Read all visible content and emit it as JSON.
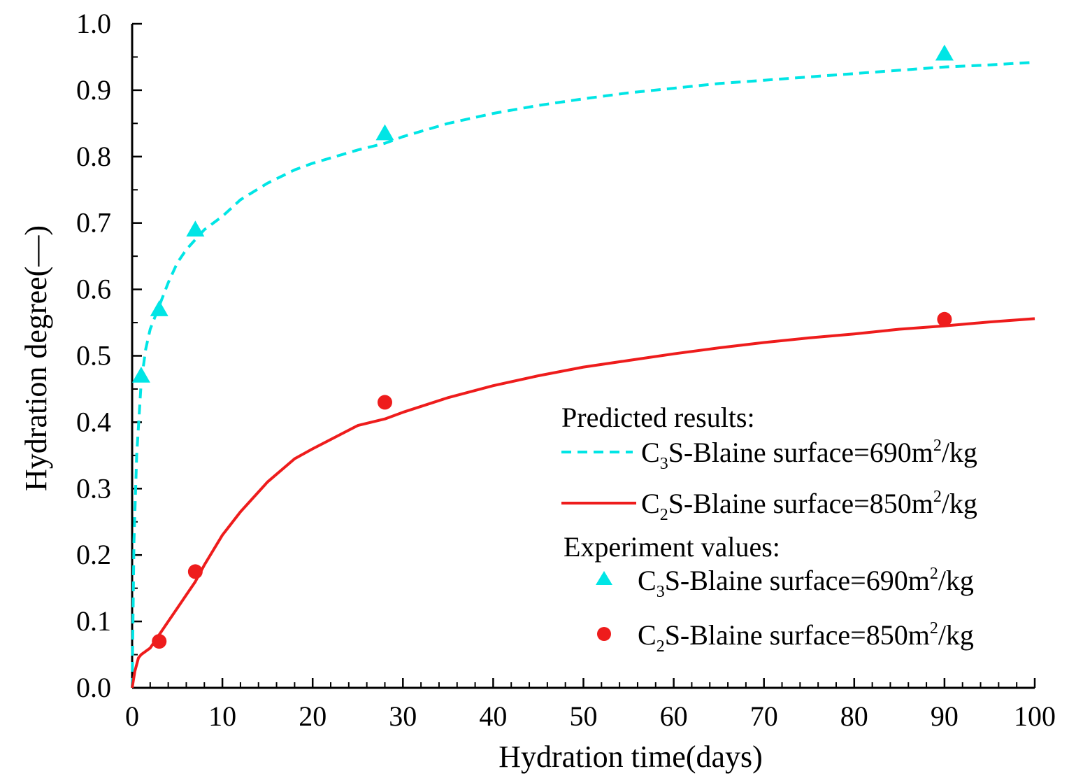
{
  "chart_data": {
    "type": "line",
    "title": "",
    "xlabel": "Hydration time(days)",
    "ylabel": "Hydration degree(—)",
    "xlim": [
      0,
      100
    ],
    "ylim": [
      0.0,
      1.0
    ],
    "x_ticks": [
      "0",
      "10",
      "20",
      "30",
      "40",
      "50",
      "60",
      "70",
      "80",
      "90",
      "100"
    ],
    "y_ticks": [
      "0.0",
      "0.1",
      "0.2",
      "0.3",
      "0.4",
      "0.5",
      "0.6",
      "0.7",
      "0.8",
      "0.9",
      "1.0"
    ],
    "x_tick_values": [
      0,
      10,
      20,
      30,
      40,
      50,
      60,
      70,
      80,
      90,
      100
    ],
    "y_tick_values": [
      0.0,
      0.1,
      0.2,
      0.3,
      0.4,
      0.5,
      0.6,
      0.7,
      0.8,
      0.9,
      1.0
    ],
    "grid": false,
    "legend": {
      "position": "bottom-right",
      "predicted_heading": "Predicted results:",
      "experiment_heading": "Experiment values:"
    },
    "series": [
      {
        "name": "C3S-Blaine surface=690m2/kg",
        "label_parts": {
          "pre": "C",
          "sub": "3",
          "mid": "S-Blaine surface=690m",
          "sup": "2",
          "post": "/kg"
        },
        "kind": "predicted",
        "style": "dashed",
        "color": "#00e5e5",
        "x": [
          0,
          0.2,
          0.5,
          1,
          1.5,
          2,
          3,
          4,
          5,
          6,
          7,
          8,
          10,
          12,
          15,
          18,
          20,
          25,
          28,
          30,
          35,
          40,
          45,
          50,
          55,
          60,
          65,
          70,
          75,
          80,
          85,
          90,
          95,
          100
        ],
        "y": [
          0.0,
          0.22,
          0.35,
          0.46,
          0.51,
          0.54,
          0.575,
          0.61,
          0.64,
          0.66,
          0.675,
          0.69,
          0.71,
          0.735,
          0.76,
          0.78,
          0.79,
          0.81,
          0.82,
          0.83,
          0.85,
          0.865,
          0.877,
          0.887,
          0.896,
          0.903,
          0.91,
          0.915,
          0.92,
          0.925,
          0.93,
          0.935,
          0.938,
          0.942
        ]
      },
      {
        "name": "C2S-Blaine surface=850m2/kg",
        "label_parts": {
          "pre": "C",
          "sub": "2",
          "mid": "S-Blaine surface=850m",
          "sup": "2",
          "post": "/kg"
        },
        "kind": "predicted",
        "style": "solid",
        "color": "#ee1c1c",
        "x": [
          0,
          0.3,
          0.7,
          1,
          2,
          3,
          4,
          5,
          6,
          7,
          8,
          10,
          12,
          15,
          18,
          20,
          25,
          28,
          30,
          35,
          40,
          45,
          50,
          55,
          60,
          65,
          70,
          75,
          80,
          85,
          90,
          95,
          100
        ],
        "y": [
          0.0,
          0.025,
          0.045,
          0.05,
          0.06,
          0.08,
          0.1,
          0.12,
          0.14,
          0.16,
          0.185,
          0.23,
          0.265,
          0.31,
          0.345,
          0.36,
          0.395,
          0.405,
          0.415,
          0.437,
          0.455,
          0.47,
          0.483,
          0.493,
          0.503,
          0.512,
          0.52,
          0.527,
          0.533,
          0.54,
          0.545,
          0.551,
          0.556
        ]
      },
      {
        "name": "C3S-Blaine surface=690m2/kg",
        "label_parts": {
          "pre": "C",
          "sub": "3",
          "mid": "S-Blaine surface=690m",
          "sup": "2",
          "post": "/kg"
        },
        "kind": "experiment",
        "marker": "triangle",
        "color": "#00e5e5",
        "x": [
          1,
          3,
          7,
          28,
          90
        ],
        "y": [
          0.47,
          0.57,
          0.69,
          0.835,
          0.955
        ]
      },
      {
        "name": "C2S-Blaine surface=850m2/kg",
        "label_parts": {
          "pre": "C",
          "sub": "2",
          "mid": "S-Blaine surface=850m",
          "sup": "2",
          "post": "/kg"
        },
        "kind": "experiment",
        "marker": "circle",
        "color": "#ee1c1c",
        "x": [
          3,
          7,
          28,
          90
        ],
        "y": [
          0.07,
          0.175,
          0.43,
          0.555
        ]
      }
    ]
  }
}
